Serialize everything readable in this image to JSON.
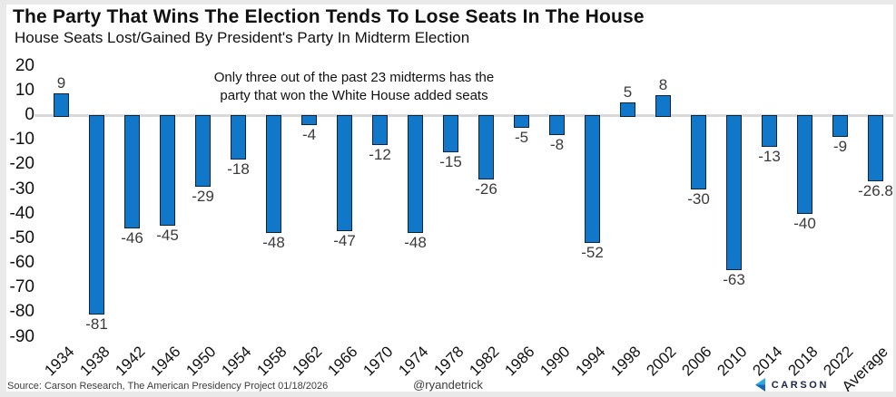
{
  "title": "The Party That Wins The Election Tends To Lose Seats In The House",
  "subtitle": "House Seats Lost/Gained By President's Party In Midterm Election",
  "annotation": {
    "line1": "Only three out of the past 23 midterms has the",
    "line2": "party that won the White House added seats"
  },
  "footer": {
    "source": "Source: Carson Research, The American Presidency Project 01/18/2026",
    "handle": "@ryandetrick",
    "logo_text": "CARSON"
  },
  "colors": {
    "bar": "#1178c9",
    "bar_border": "#08233f",
    "zero_line": "#d9d9d9",
    "logo_navy": "#16254a",
    "logo_light_blue": "#2fa9e2",
    "logo_dark_blue": "#1866b4"
  },
  "chart_data": {
    "type": "bar",
    "title": "The Party That Wins The Election Tends To Lose Seats In The House",
    "subtitle": "House Seats Lost/Gained By President's Party In Midterm Election",
    "categories": [
      "1934",
      "1938",
      "1942",
      "1946",
      "1950",
      "1954",
      "1958",
      "1962",
      "1966",
      "1970",
      "1974",
      "1978",
      "1982",
      "1986",
      "1990",
      "1994",
      "1998",
      "2002",
      "2006",
      "2010",
      "2014",
      "2018",
      "2022",
      "Average"
    ],
    "values": [
      9,
      -81,
      -46,
      -45,
      -29,
      -18,
      -48,
      -4,
      -47,
      -12,
      -48,
      -15,
      -26,
      -5,
      -8,
      -52,
      5,
      8,
      -30,
      -63,
      -13,
      -40,
      -9,
      -26.8
    ],
    "xlabel": "",
    "ylabel": "",
    "ylim": [
      -90,
      20
    ],
    "yticks": [
      20,
      10,
      0,
      -10,
      -20,
      -30,
      -40,
      -50,
      -60,
      -70,
      -80,
      -90
    ],
    "grid": false,
    "legend": "none",
    "value_labels": true
  }
}
